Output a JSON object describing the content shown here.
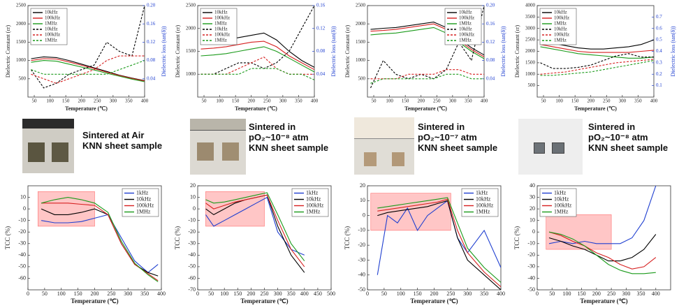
{
  "captions": [
    [
      "Sintered at Air",
      "KNN sheet sample"
    ],
    [
      "Sintered in",
      "pO₂~10⁻⁸ atm",
      "KNN sheet sample"
    ],
    [
      "Sintered in",
      "pO₂~10⁻⁷ atm",
      "KNN sheet sample"
    ],
    [
      "Sintered in",
      "pO₂~10⁻⁸ atm",
      "KNN sheet sample"
    ]
  ],
  "chart_data": [
    {
      "type": "line",
      "x_label": "Temperature (℃)",
      "y_label": "Dielectric Constant (εr)",
      "y2_label": "Dielectric loss (tan(δ))",
      "legend": "upper left",
      "xlim": [
        30,
        400
      ],
      "xticks": [
        50,
        100,
        150,
        200,
        250,
        300,
        350,
        400
      ],
      "ylim": [
        0,
        2500
      ],
      "yticks": [
        500,
        1000,
        1500,
        2000,
        2500
      ],
      "y2lim": [
        0,
        0.2
      ],
      "y2ticks": [
        0.04,
        0.08,
        0.12,
        0.16,
        {
          "value": 0.2,
          "label": "0.20"
        }
      ],
      "x": [
        40,
        80,
        120,
        160,
        200,
        240,
        280,
        320,
        360,
        400
      ],
      "series": [
        {
          "name": "10kHz",
          "color": "#000000",
          "values": [
            1050,
            1100,
            1080,
            1000,
            900,
            800,
            700,
            600,
            520,
            450
          ]
        },
        {
          "name": "100kHz",
          "color": "#d62020",
          "values": [
            1000,
            1050,
            1040,
            960,
            870,
            780,
            680,
            590,
            510,
            440
          ]
        },
        {
          "name": "1MHz",
          "color": "#1a9a1a",
          "values": [
            950,
            1000,
            980,
            900,
            820,
            740,
            650,
            570,
            490,
            420
          ]
        },
        {
          "name": "10kHz",
          "color": "#000000",
          "axis": "y2",
          "values": [
            0.06,
            0.02,
            0.03,
            0.05,
            0.06,
            0.07,
            0.12,
            0.1,
            0.09,
            0.2
          ]
        },
        {
          "name": "100kHz",
          "color": "#d62020",
          "axis": "y2",
          "values": [
            0.05,
            0.04,
            0.03,
            0.04,
            0.05,
            0.06,
            0.08,
            0.09,
            0.09,
            0.09
          ]
        },
        {
          "name": "1MHz",
          "color": "#1a9a1a",
          "axis": "y2",
          "values": [
            0.06,
            0.05,
            0.05,
            0.05,
            0.05,
            0.05,
            0.05,
            0.06,
            0.07,
            0.08
          ]
        }
      ]
    },
    {
      "type": "line",
      "x_label": "Temperature (℃)",
      "y_label": "Dielectric Constant (εr)",
      "y2_label": "Dielectric loss (tan(δ))",
      "legend": "upper left",
      "xlim": [
        30,
        400
      ],
      "xticks": [
        50,
        100,
        150,
        200,
        250,
        300,
        350,
        400
      ],
      "ylim": [
        500,
        2500
      ],
      "yticks": [
        1000,
        1500,
        2000,
        2500
      ],
      "y2lim": [
        0,
        0.16
      ],
      "y2ticks": [
        0.04,
        0.08,
        0.12,
        0.16
      ],
      "x": [
        40,
        80,
        120,
        160,
        200,
        240,
        280,
        320,
        360,
        400
      ],
      "series": [
        {
          "name": "10kHz",
          "color": "#000000",
          "values": [
            1700,
            1720,
            1750,
            1800,
            1850,
            1900,
            1750,
            1500,
            1300,
            1150
          ]
        },
        {
          "name": "100kHz",
          "color": "#d62020",
          "values": [
            1550,
            1570,
            1600,
            1650,
            1700,
            1720,
            1600,
            1400,
            1250,
            1100
          ]
        },
        {
          "name": "1MHz",
          "color": "#1a9a1a",
          "values": [
            1400,
            1420,
            1450,
            1500,
            1550,
            1600,
            1500,
            1350,
            1200,
            1050
          ]
        },
        {
          "name": "10kHz",
          "color": "#000000",
          "axis": "y2",
          "values": [
            0.04,
            0.04,
            0.05,
            0.06,
            0.06,
            0.05,
            0.06,
            0.08,
            0.12,
            0.16
          ]
        },
        {
          "name": "100kHz",
          "color": "#d62020",
          "axis": "y2",
          "values": [
            0.04,
            0.04,
            0.04,
            0.05,
            0.06,
            0.07,
            0.05,
            0.04,
            0.04,
            0.04
          ]
        },
        {
          "name": "1MHz",
          "color": "#1a9a1a",
          "axis": "y2",
          "values": [
            0.04,
            0.04,
            0.04,
            0.04,
            0.05,
            0.05,
            0.05,
            0.04,
            0.04,
            0.03
          ]
        }
      ]
    },
    {
      "type": "line",
      "x_label": "Temperature (℃)",
      "y_label": "Dielectric Constant (εr)",
      "y2_label": "Dielectric loss (tan(δ))",
      "legend": "upper right",
      "xlim": [
        30,
        400
      ],
      "xticks": [
        50,
        100,
        150,
        200,
        250,
        300,
        350,
        400
      ],
      "ylim": [
        0,
        2500
      ],
      "yticks": [
        500,
        1000,
        1500,
        2000,
        2500
      ],
      "y2lim": [
        0,
        0.2
      ],
      "y2ticks": [
        0.04,
        0.08,
        0.12,
        0.16,
        {
          "value": 0.2,
          "label": "0.20"
        }
      ],
      "x": [
        40,
        80,
        120,
        160,
        200,
        240,
        280,
        320,
        360,
        400
      ],
      "series": [
        {
          "name": "10kHz",
          "color": "#000000",
          "values": [
            1850,
            1880,
            1900,
            1950,
            2000,
            2050,
            1900,
            1600,
            1350,
            1150
          ]
        },
        {
          "name": "100kHz",
          "color": "#d62020",
          "values": [
            1800,
            1820,
            1850,
            1900,
            1950,
            2000,
            1850,
            1550,
            1300,
            1100
          ]
        },
        {
          "name": "1MHz",
          "color": "#1a9a1a",
          "values": [
            1700,
            1730,
            1750,
            1800,
            1850,
            1900,
            1750,
            1500,
            1250,
            1050
          ]
        },
        {
          "name": "10kHz",
          "color": "#000000",
          "axis": "y2",
          "values": [
            0.02,
            0.08,
            0.05,
            0.04,
            0.05,
            0.04,
            0.06,
            0.12,
            0.08,
            0.2
          ]
        },
        {
          "name": "100kHz",
          "color": "#d62020",
          "axis": "y2",
          "values": [
            0.04,
            0.04,
            0.04,
            0.05,
            0.05,
            0.05,
            0.06,
            0.06,
            0.05,
            0.05
          ]
        },
        {
          "name": "1MHz",
          "color": "#1a9a1a",
          "axis": "y2",
          "values": [
            0.03,
            0.04,
            0.04,
            0.04,
            0.04,
            0.04,
            0.05,
            0.05,
            0.04,
            0.04
          ]
        }
      ]
    },
    {
      "type": "line",
      "x_label": "Temperature (℃)",
      "y_label": "Dielectric Constant (εr)",
      "y2_label": "Dielectric loss (tan(δ))",
      "legend": "upper left",
      "xlim": [
        30,
        400
      ],
      "xticks": [
        50,
        100,
        150,
        200,
        250,
        300,
        350,
        400
      ],
      "ylim": [
        0,
        4000
      ],
      "yticks": [
        500,
        1000,
        1500,
        2000,
        2500,
        3000,
        3500,
        4000
      ],
      "y2lim": [
        0,
        0.8
      ],
      "y2ticks": [
        0.1,
        0.2,
        0.3,
        0.4,
        0.5,
        0.6,
        0.7
      ],
      "x": [
        40,
        80,
        120,
        160,
        200,
        240,
        280,
        320,
        360,
        400
      ],
      "series": [
        {
          "name": "10kHz",
          "color": "#000000",
          "values": [
            2500,
            2350,
            2250,
            2150,
            2100,
            2100,
            2150,
            2200,
            2300,
            2500
          ]
        },
        {
          "name": "100kHz",
          "color": "#d62020",
          "values": [
            2300,
            2200,
            2100,
            2000,
            1950,
            1950,
            1950,
            1950,
            2000,
            2050
          ]
        },
        {
          "name": "1MHz",
          "color": "#1a9a1a",
          "values": [
            2200,
            2100,
            2000,
            1900,
            1850,
            1800,
            1750,
            1700,
            1700,
            1750
          ]
        },
        {
          "name": "10kHz",
          "color": "#000000",
          "axis": "y2",
          "values": [
            0.3,
            0.25,
            0.25,
            0.26,
            0.28,
            0.32,
            0.36,
            0.38,
            0.35,
            0.35
          ]
        },
        {
          "name": "100kHz",
          "color": "#d62020",
          "axis": "y2",
          "values": [
            0.2,
            0.21,
            0.22,
            0.24,
            0.26,
            0.28,
            0.3,
            0.31,
            0.32,
            0.33
          ]
        },
        {
          "name": "1MHz",
          "color": "#1a9a1a",
          "axis": "y2",
          "values": [
            0.19,
            0.19,
            0.2,
            0.21,
            0.22,
            0.24,
            0.26,
            0.28,
            0.3,
            0.32
          ]
        }
      ]
    },
    {
      "type": "line",
      "x_label": "Temperature (℃)",
      "y_label": "TCC (%)",
      "legend": "upper right",
      "xlim": [
        0,
        400
      ],
      "xticks": [
        0,
        50,
        100,
        150,
        200,
        250,
        300,
        350,
        400
      ],
      "ylim": [
        -70,
        20
      ],
      "yticks": [
        -60,
        -50,
        -40,
        -30,
        -20,
        -10,
        0,
        10
      ],
      "highlight": {
        "x": [
          30,
          200
        ],
        "y": [
          -15,
          15
        ],
        "color": "#ff7070"
      },
      "x": [
        40,
        80,
        120,
        160,
        200,
        240,
        280,
        320,
        360,
        390
      ],
      "series": [
        {
          "name": "1kHz",
          "color": "#1f3fd0",
          "values": [
            -10,
            -12,
            -12,
            -11,
            -8,
            -5,
            -25,
            -45,
            -55,
            -48
          ]
        },
        {
          "name": "10kHz",
          "color": "#000000",
          "values": [
            0,
            -5,
            -5,
            -3,
            0,
            -5,
            -30,
            -48,
            -55,
            -58
          ]
        },
        {
          "name": "100kHz",
          "color": "#d62020",
          "values": [
            5,
            5,
            5,
            4,
            3,
            -5,
            -30,
            -48,
            -56,
            -62
          ]
        },
        {
          "name": "1MHz",
          "color": "#1a9a1a",
          "values": [
            5,
            8,
            10,
            8,
            5,
            -3,
            -28,
            -47,
            -57,
            -63
          ]
        }
      ]
    },
    {
      "type": "line",
      "x_label": "Temperature (℃)",
      "y_label": "TCC (%)",
      "legend": "upper right",
      "xlim": [
        0,
        500
      ],
      "xticks": [
        0,
        50,
        100,
        150,
        200,
        250,
        300,
        350,
        400,
        450,
        500
      ],
      "ylim": [
        -70,
        20
      ],
      "yticks": [
        -70,
        -60,
        -50,
        -40,
        -30,
        -20,
        -10,
        0,
        10,
        20
      ],
      "highlight": {
        "x": [
          30,
          250
        ],
        "y": [
          -15,
          15
        ],
        "color": "#ff7070"
      },
      "x": [
        30,
        60,
        100,
        140,
        180,
        220,
        260,
        300,
        350,
        400
      ],
      "series": [
        {
          "name": "1kHz",
          "color": "#1f3fd0",
          "values": [
            -5,
            -15,
            -10,
            -5,
            0,
            5,
            10,
            -20,
            -35,
            -40
          ]
        },
        {
          "name": "10kHz",
          "color": "#000000",
          "values": [
            0,
            -5,
            0,
            5,
            8,
            10,
            12,
            -15,
            -40,
            -55
          ]
        },
        {
          "name": "100kHz",
          "color": "#d62020",
          "values": [
            5,
            0,
            3,
            6,
            8,
            10,
            12,
            -10,
            -35,
            -50
          ]
        },
        {
          "name": "1MHz",
          "color": "#1a9a1a",
          "values": [
            8,
            5,
            6,
            8,
            10,
            12,
            14,
            -5,
            -30,
            -45
          ]
        }
      ]
    },
    {
      "type": "line",
      "x_label": "Temperature (℃)",
      "y_label": "TCC (%)",
      "legend": "upper right",
      "xlim": [
        0,
        400
      ],
      "xticks": [
        0,
        50,
        100,
        150,
        200,
        250,
        300,
        350,
        400
      ],
      "ylim": [
        -50,
        20
      ],
      "yticks": [
        -50,
        -40,
        -30,
        -20,
        -10,
        0,
        10,
        20
      ],
      "highlight": {
        "x": [
          10,
          250
        ],
        "y": [
          -10,
          15
        ],
        "color": "#ff7070"
      },
      "x": [
        30,
        60,
        90,
        120,
        150,
        180,
        210,
        240,
        270,
        300,
        350,
        400
      ],
      "series": [
        {
          "name": "1kHz",
          "color": "#1f3fd0",
          "values": [
            -40,
            0,
            -5,
            5,
            -10,
            0,
            5,
            10,
            -15,
            -25,
            -10,
            -35
          ]
        },
        {
          "name": "10kHz",
          "color": "#000000",
          "values": [
            0,
            2,
            3,
            4,
            5,
            6,
            8,
            10,
            -15,
            -30,
            -40,
            -50
          ]
        },
        {
          "name": "100kHz",
          "color": "#d62020",
          "values": [
            3,
            4,
            5,
            6,
            7,
            8,
            9,
            11,
            -10,
            -25,
            -38,
            -48
          ]
        },
        {
          "name": "1MHz",
          "color": "#1a9a1a",
          "values": [
            5,
            6,
            7,
            8,
            9,
            10,
            11,
            12,
            -5,
            -22,
            -35,
            -45
          ]
        }
      ]
    },
    {
      "type": "line",
      "x_label": "Temperature (℃)",
      "y_label": "TCC (%)",
      "legend": "upper left",
      "xlim": [
        0,
        450
      ],
      "xticks": [
        0,
        50,
        100,
        150,
        200,
        250,
        300,
        350,
        400
      ],
      "ylim": [
        -50,
        40
      ],
      "yticks": [
        -50,
        -40,
        -30,
        -20,
        -10,
        0,
        10,
        20,
        30,
        40
      ],
      "highlight": {
        "x": [
          30,
          250
        ],
        "y": [
          -15,
          15
        ],
        "color": "#ff7070"
      },
      "x": [
        40,
        80,
        120,
        160,
        200,
        240,
        280,
        320,
        360,
        400
      ],
      "series": [
        {
          "name": "1kHz",
          "color": "#1f3fd0",
          "values": [
            -10,
            -8,
            -10,
            -8,
            -10,
            -10,
            -10,
            -5,
            10,
            40
          ]
        },
        {
          "name": "10kHz",
          "color": "#000000",
          "values": [
            -5,
            -8,
            -12,
            -15,
            -20,
            -25,
            -25,
            -22,
            -15,
            -2
          ]
        },
        {
          "name": "100kHz",
          "color": "#d62020",
          "values": [
            0,
            -3,
            -8,
            -12,
            -18,
            -22,
            -28,
            -32,
            -30,
            -22
          ]
        },
        {
          "name": "1MHz",
          "color": "#1a9a1a",
          "values": [
            0,
            -2,
            -6,
            -12,
            -20,
            -28,
            -33,
            -36,
            -36,
            -35
          ]
        }
      ]
    }
  ]
}
